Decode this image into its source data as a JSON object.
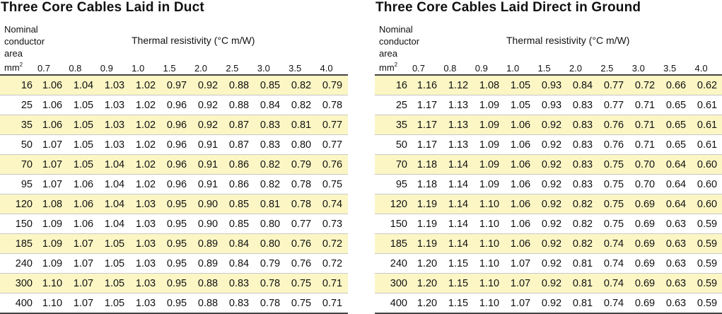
{
  "headers": {
    "nominal": [
      "Nominal",
      "conductor",
      "area"
    ],
    "mm_label": "mm",
    "mm_sup": "2",
    "thermal": "Thermal resistivity (°C m/W)",
    "columns": [
      "0.7",
      "0.8",
      "0.9",
      "1.0",
      "1.5",
      "2.0",
      "2.5",
      "3.0",
      "3.5",
      "4.0"
    ]
  },
  "left": {
    "title": "Three Core Cables Laid in Duct",
    "rows": [
      [
        "16",
        "1.06",
        "1.04",
        "1.03",
        "1.02",
        "0.97",
        "0.92",
        "0.88",
        "0.85",
        "0.82",
        "0.79"
      ],
      [
        "25",
        "1.06",
        "1.05",
        "1.03",
        "1.02",
        "0.96",
        "0.92",
        "0.88",
        "0.84",
        "0.82",
        "0.78"
      ],
      [
        "35",
        "1.06",
        "1.05",
        "1.03",
        "1.02",
        "0.96",
        "0.92",
        "0.87",
        "0.83",
        "0.81",
        "0.77"
      ],
      [
        "50",
        "1.07",
        "1.05",
        "1.03",
        "1.02",
        "0.96",
        "0.91",
        "0.87",
        "0.83",
        "0.80",
        "0.77"
      ],
      [
        "70",
        "1.07",
        "1.05",
        "1.04",
        "1.02",
        "0.96",
        "0.91",
        "0.86",
        "0.82",
        "0.79",
        "0.76"
      ],
      [
        "95",
        "1.07",
        "1.06",
        "1.04",
        "1.02",
        "0.96",
        "0.91",
        "0.86",
        "0.82",
        "0.78",
        "0.75"
      ],
      [
        "120",
        "1.08",
        "1.06",
        "1.04",
        "1.03",
        "0.95",
        "0.90",
        "0.85",
        "0.81",
        "0.78",
        "0.74"
      ],
      [
        "150",
        "1.09",
        "1.06",
        "1.04",
        "1.03",
        "0.95",
        "0.90",
        "0.85",
        "0.80",
        "0.77",
        "0.73"
      ],
      [
        "185",
        "1.09",
        "1.07",
        "1.05",
        "1.03",
        "0.95",
        "0.89",
        "0.84",
        "0.80",
        "0.76",
        "0.72"
      ],
      [
        "240",
        "1.09",
        "1.07",
        "1.05",
        "1.03",
        "0.95",
        "0.89",
        "0.84",
        "0.79",
        "0.76",
        "0.72"
      ],
      [
        "300",
        "1.10",
        "1.07",
        "1.05",
        "1.03",
        "0.95",
        "0.88",
        "0.83",
        "0.78",
        "0.75",
        "0.71"
      ],
      [
        "400",
        "1.10",
        "1.07",
        "1.05",
        "1.03",
        "0.95",
        "0.88",
        "0.83",
        "0.78",
        "0.75",
        "0.71"
      ]
    ]
  },
  "right": {
    "title": "Three Core Cables Laid Direct in Ground",
    "rows": [
      [
        "16",
        "1.16",
        "1.12",
        "1.08",
        "1.05",
        "0.93",
        "0.84",
        "0.77",
        "0.72",
        "0.66",
        "0.62"
      ],
      [
        "25",
        "1.17",
        "1.13",
        "1.09",
        "1.05",
        "0.93",
        "0.83",
        "0.77",
        "0.71",
        "0.65",
        "0.61"
      ],
      [
        "35",
        "1.17",
        "1.13",
        "1.09",
        "1.06",
        "0.92",
        "0.83",
        "0.76",
        "0.71",
        "0.65",
        "0.61"
      ],
      [
        "50",
        "1.17",
        "1.13",
        "1.09",
        "1.06",
        "0.92",
        "0.83",
        "0.76",
        "0.71",
        "0.65",
        "0.61"
      ],
      [
        "70",
        "1.18",
        "1.14",
        "1.09",
        "1.06",
        "0.92",
        "0.83",
        "0.75",
        "0.70",
        "0.64",
        "0.60"
      ],
      [
        "95",
        "1.18",
        "1.14",
        "1.09",
        "1.06",
        "0.92",
        "0.83",
        "0.75",
        "0.70",
        "0.64",
        "0.60"
      ],
      [
        "120",
        "1.19",
        "1.14",
        "1.10",
        "1.06",
        "0.92",
        "0.82",
        "0.75",
        "0.69",
        "0.64",
        "0.60"
      ],
      [
        "150",
        "1.19",
        "1.14",
        "1.10",
        "1.06",
        "0.92",
        "0.82",
        "0.75",
        "0.69",
        "0.63",
        "0.59"
      ],
      [
        "185",
        "1.19",
        "1.14",
        "1.10",
        "1.06",
        "0.92",
        "0.82",
        "0.74",
        "0.69",
        "0.63",
        "0.59"
      ],
      [
        "240",
        "1.20",
        "1.15",
        "1.10",
        "1.07",
        "0.92",
        "0.81",
        "0.74",
        "0.69",
        "0.63",
        "0.59"
      ],
      [
        "300",
        "1.20",
        "1.15",
        "1.10",
        "1.07",
        "0.92",
        "0.81",
        "0.74",
        "0.69",
        "0.63",
        "0.59"
      ],
      [
        "400",
        "1.20",
        "1.15",
        "1.10",
        "1.07",
        "0.92",
        "0.81",
        "0.74",
        "0.69",
        "0.63",
        "0.59"
      ]
    ]
  },
  "colors": {
    "highlight_row": "#fbf6c4",
    "rule": "#444444"
  }
}
